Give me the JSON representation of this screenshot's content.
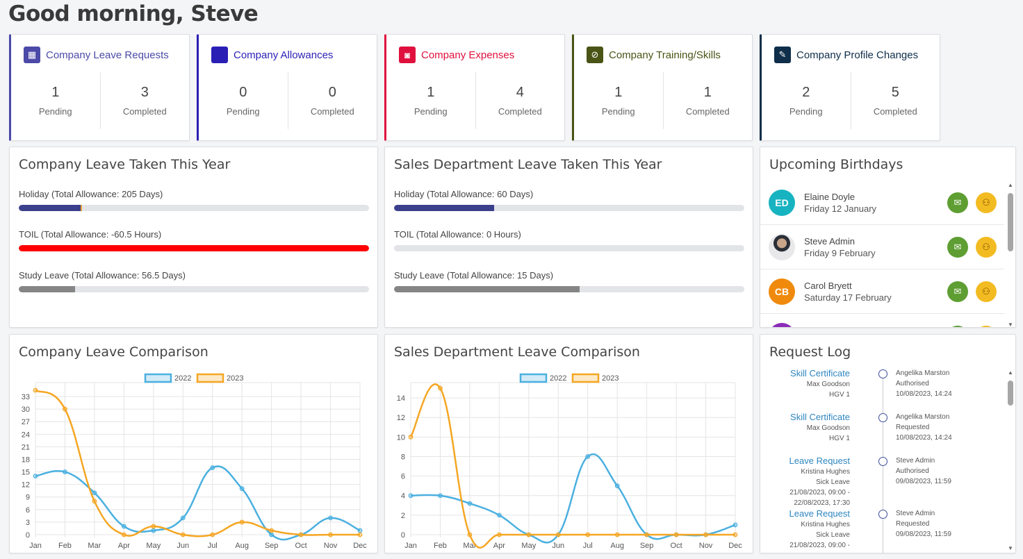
{
  "greeting": "Good morning, Steve",
  "stat_cards": [
    {
      "title": "Company Leave Requests",
      "color": "#4b4aa8",
      "icon": "calendar-icon",
      "pending": "1",
      "completed": "3"
    },
    {
      "title": "Company Allowances",
      "color": "#2a1fb5",
      "icon": "allowance-icon",
      "pending": "0",
      "completed": "0"
    },
    {
      "title": "Company Expenses",
      "color": "#e0103e",
      "icon": "money-icon",
      "pending": "1",
      "completed": "4"
    },
    {
      "title": "Company Training/Skills",
      "color": "#4a5416",
      "icon": "paperclip-icon",
      "pending": "1",
      "completed": "1"
    },
    {
      "title": "Company Profile Changes",
      "color": "#0e2e4a",
      "icon": "user-edit-icon",
      "pending": "2",
      "completed": "5"
    }
  ],
  "labels": {
    "pending": "Pending",
    "completed": "Completed"
  },
  "company_leave": {
    "title": "Company Leave Taken This Year",
    "bars": [
      {
        "label": "Holiday (Total Allowance: 205 Days)",
        "fraction": 0.18,
        "color": "#3b3f8c",
        "accent": "#e8a23a"
      },
      {
        "label": "TOIL (Total Allowance: -60.5 Hours)",
        "fraction": 1.0,
        "color": "#ff0000"
      },
      {
        "label": "Study Leave (Total Allowance: 56.5 Days)",
        "fraction": 0.16,
        "color": "#858585"
      }
    ]
  },
  "sales_leave": {
    "title": "Sales Department Leave Taken This Year",
    "bars": [
      {
        "label": "Holiday (Total Allowance: 60 Days)",
        "fraction": 0.285,
        "color": "#3b3f8c"
      },
      {
        "label": "TOIL (Total Allowance: 0 Hours)",
        "fraction": 0.0,
        "color": "#3b3f8c"
      },
      {
        "label": "Study Leave (Total Allowance: 15 Days)",
        "fraction": 0.53,
        "color": "#858585"
      }
    ]
  },
  "birthdays": {
    "title": "Upcoming Birthdays",
    "people": [
      {
        "initials": "ED",
        "name": "Elaine Doyle",
        "date": "Friday 12 January",
        "avatar_color": "#17b3c1"
      },
      {
        "initials": "",
        "name": "Steve Admin",
        "date": "Friday 9 February",
        "avatar_color": "#6b6f7a"
      },
      {
        "initials": "CB",
        "name": "Carol Bryett",
        "date": "Saturday 17 February",
        "avatar_color": "#f08a0c"
      }
    ],
    "mail_color": "#5e9e32",
    "group_color": "#f2bb22"
  },
  "company_chart_title": "Company Leave Comparison",
  "sales_chart_title": "Sales Department Leave Comparison",
  "chart_data": [
    {
      "type": "line",
      "categories": [
        "Jan",
        "Feb",
        "Mar",
        "Apr",
        "May",
        "Jun",
        "Jul",
        "Aug",
        "Sep",
        "Oct",
        "Nov",
        "Dec"
      ],
      "series": [
        {
          "name": "2022",
          "color": "#4bb0e0",
          "values": [
            14,
            15,
            10,
            2,
            1,
            4,
            16,
            11,
            0,
            0,
            4,
            1
          ]
        },
        {
          "name": "2023",
          "color": "#f5a623",
          "values": [
            34.5,
            30,
            8,
            0,
            2,
            0,
            0,
            3,
            1,
            0,
            0,
            0
          ]
        }
      ],
      "yticks": [
        0,
        3,
        6,
        9,
        12,
        15,
        18,
        21,
        24,
        27,
        30,
        33
      ],
      "ylim": [
        0,
        35
      ],
      "grid": true,
      "legend": "top"
    },
    {
      "type": "line",
      "categories": [
        "Jan",
        "Feb",
        "Mar",
        "Apr",
        "May",
        "Jun",
        "Jul",
        "Aug",
        "Sep",
        "Oct",
        "Nov",
        "Dec"
      ],
      "series": [
        {
          "name": "2022",
          "color": "#4bb0e0",
          "values": [
            4,
            4,
            3.2,
            2,
            0,
            0,
            8,
            5,
            0,
            0,
            0,
            1
          ]
        },
        {
          "name": "2023",
          "color": "#f5a623",
          "values": [
            10,
            15,
            0,
            0,
            0,
            0,
            0,
            0,
            0,
            0,
            0,
            0
          ]
        }
      ],
      "yticks": [
        0,
        2,
        4,
        6,
        8,
        10,
        12,
        14
      ],
      "ylim": [
        0,
        15
      ],
      "grid": true,
      "legend": "top"
    }
  ],
  "request_log": {
    "title": "Request Log",
    "entries": [
      {
        "type": "Skill Certificate",
        "person": "Max Goodson",
        "detail": "HGV 1",
        "detail2": "",
        "by": "Angelika Marston",
        "status": "Authorised",
        "time": "10/08/2023, 14:24"
      },
      {
        "type": "Skill Certificate",
        "person": "Max Goodson",
        "detail": "HGV 1",
        "detail2": "",
        "by": "Angelika Marston",
        "status": "Requested",
        "time": "10/08/2023, 14:24"
      },
      {
        "type": "Leave Request",
        "person": "Kristina Hughes",
        "detail": "Sick Leave",
        "detail2": "21/08/2023, 09:00 -",
        "detail3": "22/08/2023, 17:30",
        "by": "Steve Admin",
        "status": "Authorised",
        "time": "09/08/2023, 11:59"
      },
      {
        "type": "Leave Request",
        "person": "Kristina Hughes",
        "detail": "Sick Leave",
        "detail2": "21/08/2023, 09:00 -",
        "detail3": "",
        "by": "Steve Admin",
        "status": "Requested",
        "time": "09/08/2023, 11:59"
      }
    ]
  }
}
